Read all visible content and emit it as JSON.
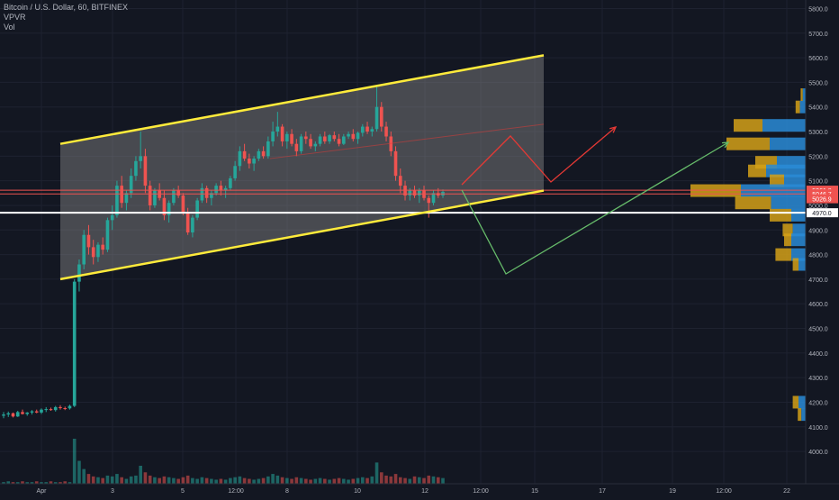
{
  "legend": {
    "symbol_line": "Bitcoin / U.S. Dollar, 60, BITFINEX",
    "indicator_1": "VPVR",
    "indicator_2": "Vol"
  },
  "colors": {
    "background": "#131722",
    "grid": "#1e2230",
    "up": "#26a69a",
    "down": "#ef5350",
    "channel": "#ffeb3b",
    "channel_fill": "#8a8a8a",
    "support": "#ffffff",
    "bull_arrow": "#e53935",
    "bear_arrow": "#66bb6a",
    "vp_up": "#2a8bd6",
    "vp_down": "#d4a017"
  },
  "chart_data": {
    "type": "candlestick",
    "price_axis": {
      "ticks": [
        "5800.0",
        "5700.0",
        "5600.0",
        "5500.0",
        "5400.0",
        "5300.0",
        "5200.0",
        "5100.0",
        "5000.0",
        "4900.0",
        "4800.0",
        "4700.0",
        "4600.0",
        "4500.0",
        "4400.0",
        "4300.0",
        "4200.0",
        "4100.0",
        "4000.0"
      ],
      "range": [
        3960,
        5820
      ]
    },
    "time_axis": {
      "ticks": [
        "Apr",
        "3",
        "5",
        "12:00",
        "8",
        "10",
        "12",
        "12:00",
        "15",
        "17",
        "19",
        "12:00",
        "22"
      ]
    },
    "price_labels": [
      {
        "text": "5061.8",
        "value": 5061.8,
        "color": "#ef5350"
      },
      {
        "text": "5046.7",
        "value": 5046.7,
        "color": "#ef5350"
      },
      {
        "text": "5026.9",
        "value": 5026.9,
        "color": "#ef5350"
      },
      {
        "text": "4970.0",
        "value": 4970.0,
        "color": "#ffffff"
      }
    ],
    "horizontal_lines": [
      {
        "value": 5061.8,
        "color": "#ef5350"
      },
      {
        "value": 5046.7,
        "color": "#ef5350"
      },
      {
        "value": 4970.0,
        "color": "#ffffff"
      }
    ],
    "candles_ohlc": [
      [
        4145,
        4160,
        4135,
        4150
      ],
      [
        4150,
        4162,
        4140,
        4155
      ],
      [
        4155,
        4158,
        4138,
        4142
      ],
      [
        4142,
        4165,
        4140,
        4160
      ],
      [
        4160,
        4170,
        4150,
        4152
      ],
      [
        4152,
        4160,
        4145,
        4158
      ],
      [
        4158,
        4168,
        4150,
        4163
      ],
      [
        4163,
        4170,
        4155,
        4158
      ],
      [
        4158,
        4175,
        4152,
        4170
      ],
      [
        4170,
        4180,
        4160,
        4172
      ],
      [
        4172,
        4178,
        4165,
        4168
      ],
      [
        4168,
        4185,
        4162,
        4180
      ],
      [
        4180,
        4188,
        4170,
        4176
      ],
      [
        4176,
        4182,
        4168,
        4175
      ],
      [
        4175,
        4190,
        4170,
        4185
      ],
      [
        4185,
        4700,
        4180,
        4690
      ],
      [
        4690,
        4780,
        4650,
        4760
      ],
      [
        4760,
        4900,
        4740,
        4880
      ],
      [
        4880,
        4920,
        4800,
        4830
      ],
      [
        4830,
        4860,
        4760,
        4790
      ],
      [
        4790,
        4850,
        4770,
        4840
      ],
      [
        4840,
        4870,
        4800,
        4820
      ],
      [
        4820,
        4950,
        4810,
        4940
      ],
      [
        4940,
        5000,
        4900,
        4960
      ],
      [
        4960,
        5100,
        4950,
        5080
      ],
      [
        5080,
        5120,
        4990,
        5010
      ],
      [
        5010,
        5060,
        4980,
        5050
      ],
      [
        5050,
        5150,
        5030,
        5120
      ],
      [
        5120,
        5200,
        5100,
        5180
      ],
      [
        5180,
        5300,
        5150,
        5200
      ],
      [
        5200,
        5230,
        5050,
        5080
      ],
      [
        5080,
        5100,
        4980,
        5000
      ],
      [
        5000,
        5070,
        4990,
        5060
      ],
      [
        5060,
        5090,
        5020,
        5030
      ],
      [
        5030,
        5060,
        4940,
        4960
      ],
      [
        4960,
        5020,
        4930,
        5010
      ],
      [
        5010,
        5070,
        5000,
        5060
      ],
      [
        5060,
        5080,
        5030,
        5040
      ],
      [
        5040,
        5050,
        4960,
        4970
      ],
      [
        4970,
        4990,
        4880,
        4890
      ],
      [
        4890,
        4960,
        4870,
        4950
      ],
      [
        4950,
        5030,
        4940,
        5020
      ],
      [
        5020,
        5090,
        5010,
        5070
      ],
      [
        5070,
        5080,
        5010,
        5030
      ],
      [
        5030,
        5060,
        5000,
        5050
      ],
      [
        5050,
        5090,
        5040,
        5080
      ],
      [
        5080,
        5100,
        5040,
        5060
      ],
      [
        5060,
        5080,
        5030,
        5070
      ],
      [
        5070,
        5120,
        5060,
        5110
      ],
      [
        5110,
        5180,
        5100,
        5160
      ],
      [
        5160,
        5240,
        5140,
        5220
      ],
      [
        5220,
        5250,
        5180,
        5190
      ],
      [
        5190,
        5210,
        5150,
        5170
      ],
      [
        5170,
        5200,
        5140,
        5190
      ],
      [
        5190,
        5230,
        5180,
        5220
      ],
      [
        5220,
        5240,
        5190,
        5200
      ],
      [
        5200,
        5280,
        5190,
        5260
      ],
      [
        5260,
        5340,
        5240,
        5300
      ],
      [
        5300,
        5380,
        5280,
        5320
      ],
      [
        5320,
        5330,
        5240,
        5260
      ],
      [
        5260,
        5300,
        5230,
        5290
      ],
      [
        5290,
        5310,
        5240,
        5250
      ],
      [
        5250,
        5270,
        5200,
        5220
      ],
      [
        5220,
        5290,
        5210,
        5280
      ],
      [
        5280,
        5300,
        5250,
        5270
      ],
      [
        5270,
        5290,
        5230,
        5240
      ],
      [
        5240,
        5260,
        5220,
        5250
      ],
      [
        5250,
        5290,
        5240,
        5280
      ],
      [
        5280,
        5300,
        5250,
        5260
      ],
      [
        5260,
        5290,
        5250,
        5285
      ],
      [
        5285,
        5300,
        5260,
        5270
      ],
      [
        5270,
        5290,
        5240,
        5250
      ],
      [
        5250,
        5290,
        5245,
        5280
      ],
      [
        5280,
        5300,
        5270,
        5290
      ],
      [
        5290,
        5310,
        5260,
        5270
      ],
      [
        5270,
        5300,
        5250,
        5295
      ],
      [
        5295,
        5330,
        5280,
        5320
      ],
      [
        5320,
        5340,
        5290,
        5300
      ],
      [
        5300,
        5320,
        5280,
        5310
      ],
      [
        5310,
        5490,
        5300,
        5400
      ],
      [
        5400,
        5420,
        5300,
        5320
      ],
      [
        5320,
        5340,
        5260,
        5280
      ],
      [
        5280,
        5300,
        5200,
        5220
      ],
      [
        5220,
        5240,
        5100,
        5120
      ],
      [
        5120,
        5150,
        5050,
        5080
      ],
      [
        5080,
        5100,
        5020,
        5040
      ],
      [
        5040,
        5070,
        5020,
        5060
      ],
      [
        5060,
        5080,
        5030,
        5040
      ],
      [
        5040,
        5070,
        5010,
        5060
      ],
      [
        5060,
        5080,
        5020,
        5030
      ],
      [
        5030,
        5040,
        4950,
        5010
      ],
      [
        5010,
        5060,
        5000,
        5050
      ],
      [
        5050,
        5070,
        5030,
        5040
      ],
      [
        5040,
        5065,
        5030,
        5055
      ]
    ],
    "volume": [
      2,
      3,
      2,
      2,
      3,
      2,
      2,
      3,
      2,
      2,
      3,
      2,
      2,
      3,
      2,
      55,
      28,
      18,
      12,
      9,
      8,
      7,
      10,
      9,
      12,
      8,
      6,
      9,
      10,
      22,
      14,
      10,
      8,
      7,
      9,
      8,
      7,
      6,
      8,
      10,
      7,
      6,
      8,
      7,
      6,
      5,
      6,
      5,
      7,
      8,
      9,
      7,
      6,
      5,
      6,
      7,
      9,
      12,
      10,
      8,
      7,
      6,
      8,
      7,
      6,
      5,
      6,
      7,
      6,
      5,
      6,
      7,
      6,
      5,
      6,
      7,
      8,
      7,
      9,
      26,
      14,
      10,
      9,
      12,
      8,
      7,
      6,
      9,
      8,
      7,
      10,
      9,
      8,
      7
    ],
    "volume_profile": [
      {
        "price": 5325,
        "buy": 60,
        "sell": 40
      },
      {
        "price": 5250,
        "buy": 50,
        "sell": 60
      },
      {
        "price": 5175,
        "buy": 40,
        "sell": 30
      },
      {
        "price": 5140,
        "buy": 55,
        "sell": 25
      },
      {
        "price": 5100,
        "buy": 30,
        "sell": 20
      },
      {
        "price": 5060,
        "buy": 90,
        "sell": 70
      },
      {
        "price": 5010,
        "buy": 48,
        "sell": 50
      },
      {
        "price": 4960,
        "buy": 20,
        "sell": 30
      },
      {
        "price": 4900,
        "buy": 18,
        "sell": 14
      },
      {
        "price": 4860,
        "buy": 20,
        "sell": 10
      },
      {
        "price": 4800,
        "buy": 20,
        "sell": 22
      },
      {
        "price": 4760,
        "buy": 10,
        "sell": 8
      },
      {
        "price": 4200,
        "buy": 10,
        "sell": 8
      },
      {
        "price": 4150,
        "buy": 6,
        "sell": 5
      },
      {
        "price": 5400,
        "buy": 8,
        "sell": 6
      },
      {
        "price": 5450,
        "buy": 4,
        "sell": 3
      }
    ],
    "drawings": {
      "channel_upper": [
        [
          0,
          5250
        ],
        [
          1,
          5610
        ]
      ],
      "channel_lower": [
        [
          0,
          4700
        ],
        [
          1,
          5060
        ]
      ],
      "support_value": 4970
    }
  }
}
